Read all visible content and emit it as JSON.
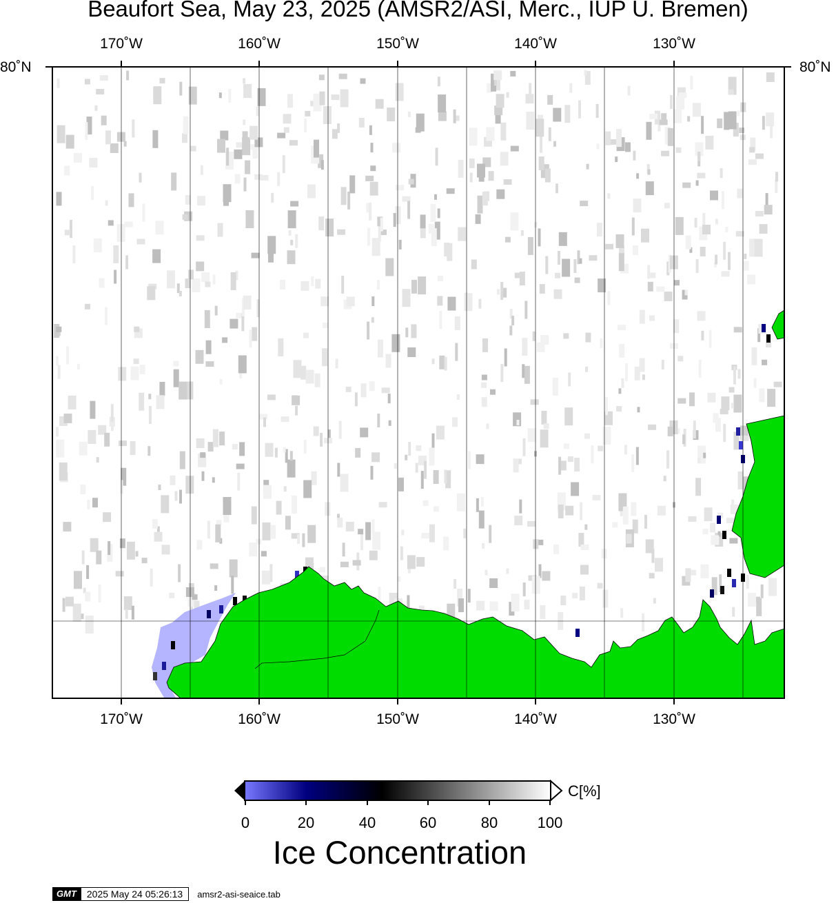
{
  "title": "Beaufort Sea, May 23, 2025 (AMSR2/ASI, Merc., IUP U. Bremen)",
  "map": {
    "projection": "Mercator",
    "lon_labels": [
      "170˚W",
      "160˚W",
      "150˚W",
      "140˚W",
      "130˚W"
    ],
    "lat_label": "80˚N",
    "colors": {
      "land": "#00dc00",
      "open_water_shelf_ice": "#b4b4ff",
      "coast_stroke": "#000000",
      "grid": "#000000"
    }
  },
  "colorbar": {
    "ticks": [
      "0",
      "20",
      "40",
      "60",
      "80",
      "100"
    ],
    "unit": "C[%]",
    "title": "Ice Concentration",
    "stops": [
      {
        "value": 0,
        "color": "#7878ff"
      },
      {
        "value": 20,
        "color": "#000080"
      },
      {
        "value": 50,
        "color": "#000000"
      },
      {
        "value": 100,
        "color": "#ffffff"
      }
    ]
  },
  "footer": {
    "logo": "GMT",
    "timestamp": "2025 May 24 05:26:13",
    "source_file": "amsr2-asi-seaice.tab"
  }
}
